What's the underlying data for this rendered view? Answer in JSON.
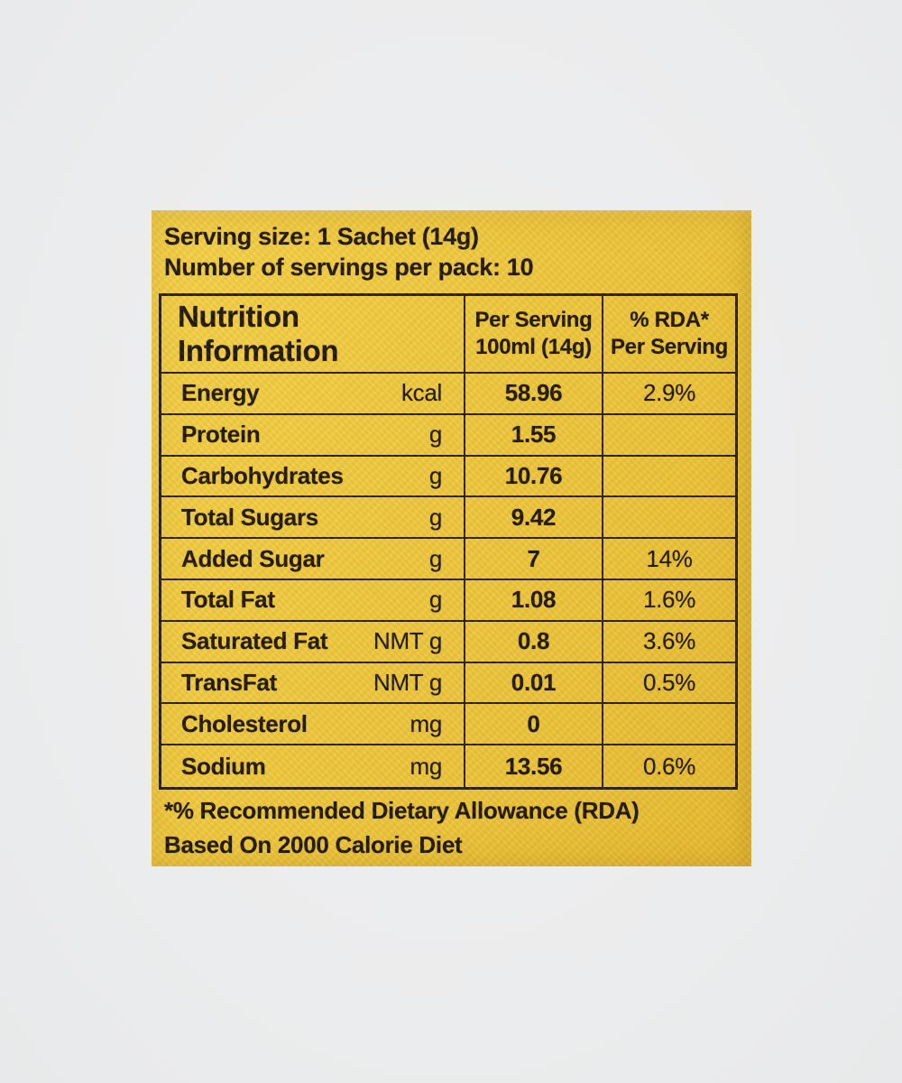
{
  "label": {
    "serving_size_line": "Serving size: 1 Sachet (14g)",
    "servings_per_pack_line": "Number of servings per pack: 10",
    "footnote_line1": "*% Recommended Dietary Allowance (RDA)",
    "footnote_line2": "Based On 2000 Calorie Diet"
  },
  "table": {
    "header": {
      "col1": "Nutrition Information",
      "col2_line1": "Per Serving",
      "col2_line2": "100ml (14g)",
      "col3_line1": "% RDA*",
      "col3_line2": "Per Serving"
    },
    "rows": [
      {
        "nutrient": "Energy",
        "unit": "kcal",
        "per_serving": "58.96",
        "rda": "2.9%"
      },
      {
        "nutrient": "Protein",
        "unit": "g",
        "per_serving": "1.55",
        "rda": ""
      },
      {
        "nutrient": "Carbohydrates",
        "unit": "g",
        "per_serving": "10.76",
        "rda": ""
      },
      {
        "nutrient": "Total Sugars",
        "unit": "g",
        "per_serving": "9.42",
        "rda": ""
      },
      {
        "nutrient": "Added Sugar",
        "unit": "g",
        "per_serving": "7",
        "rda": "14%"
      },
      {
        "nutrient": "Total Fat",
        "unit": "g",
        "per_serving": "1.08",
        "rda": "1.6%"
      },
      {
        "nutrient": "Saturated Fat",
        "unit": "NMT g",
        "per_serving": "0.8",
        "rda": "3.6%"
      },
      {
        "nutrient": "TransFat",
        "unit": "NMT g",
        "per_serving": "0.01",
        "rda": "0.5%"
      },
      {
        "nutrient": "Cholesterol",
        "unit": "mg",
        "per_serving": "0",
        "rda": ""
      },
      {
        "nutrient": "Sodium",
        "unit": "mg",
        "per_serving": "13.56",
        "rda": "0.6%"
      }
    ]
  },
  "colors": {
    "label_yellow": "#f0c93e",
    "background_gray": "#ebeced",
    "ink": "#1e150a",
    "grid_line": "#281d0e"
  }
}
